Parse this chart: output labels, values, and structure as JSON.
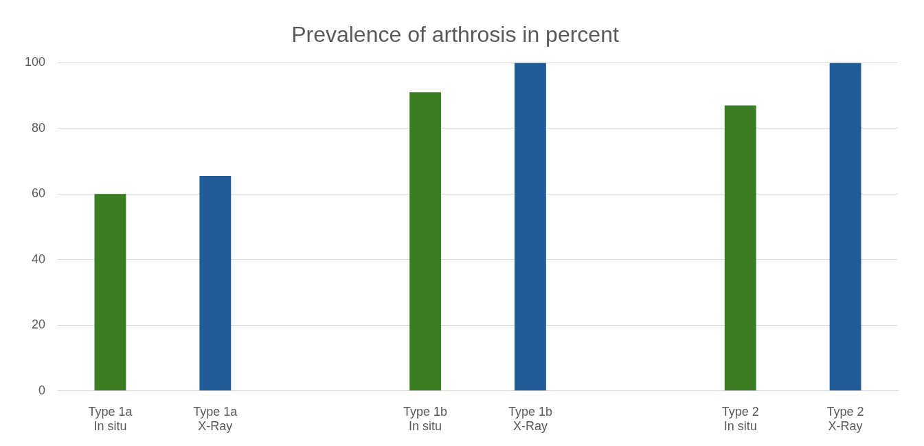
{
  "chart_data": {
    "type": "bar",
    "title": "Prevalence of arthrosis in percent",
    "categories": [
      "Type 1a\nIn situ",
      "Type 1a\nX-Ray",
      null,
      "Type 1b\nIn situ",
      "Type 1b\nX-Ray",
      null,
      "Type 2\nIn situ",
      "Type 2\nX-Ray"
    ],
    "values": [
      60,
      65.5,
      null,
      91,
      100,
      null,
      87,
      100
    ],
    "colors": [
      "#3a7d22",
      "#1f5c99",
      "#3a7d22",
      "#3a7d22",
      "#1f5c99",
      "#3a7d22",
      "#3a7d22",
      "#1f5c99"
    ],
    "ylim": [
      0,
      100
    ],
    "yticks": [
      0,
      20,
      40,
      60,
      80,
      100
    ],
    "grid": "y",
    "legend": false
  }
}
